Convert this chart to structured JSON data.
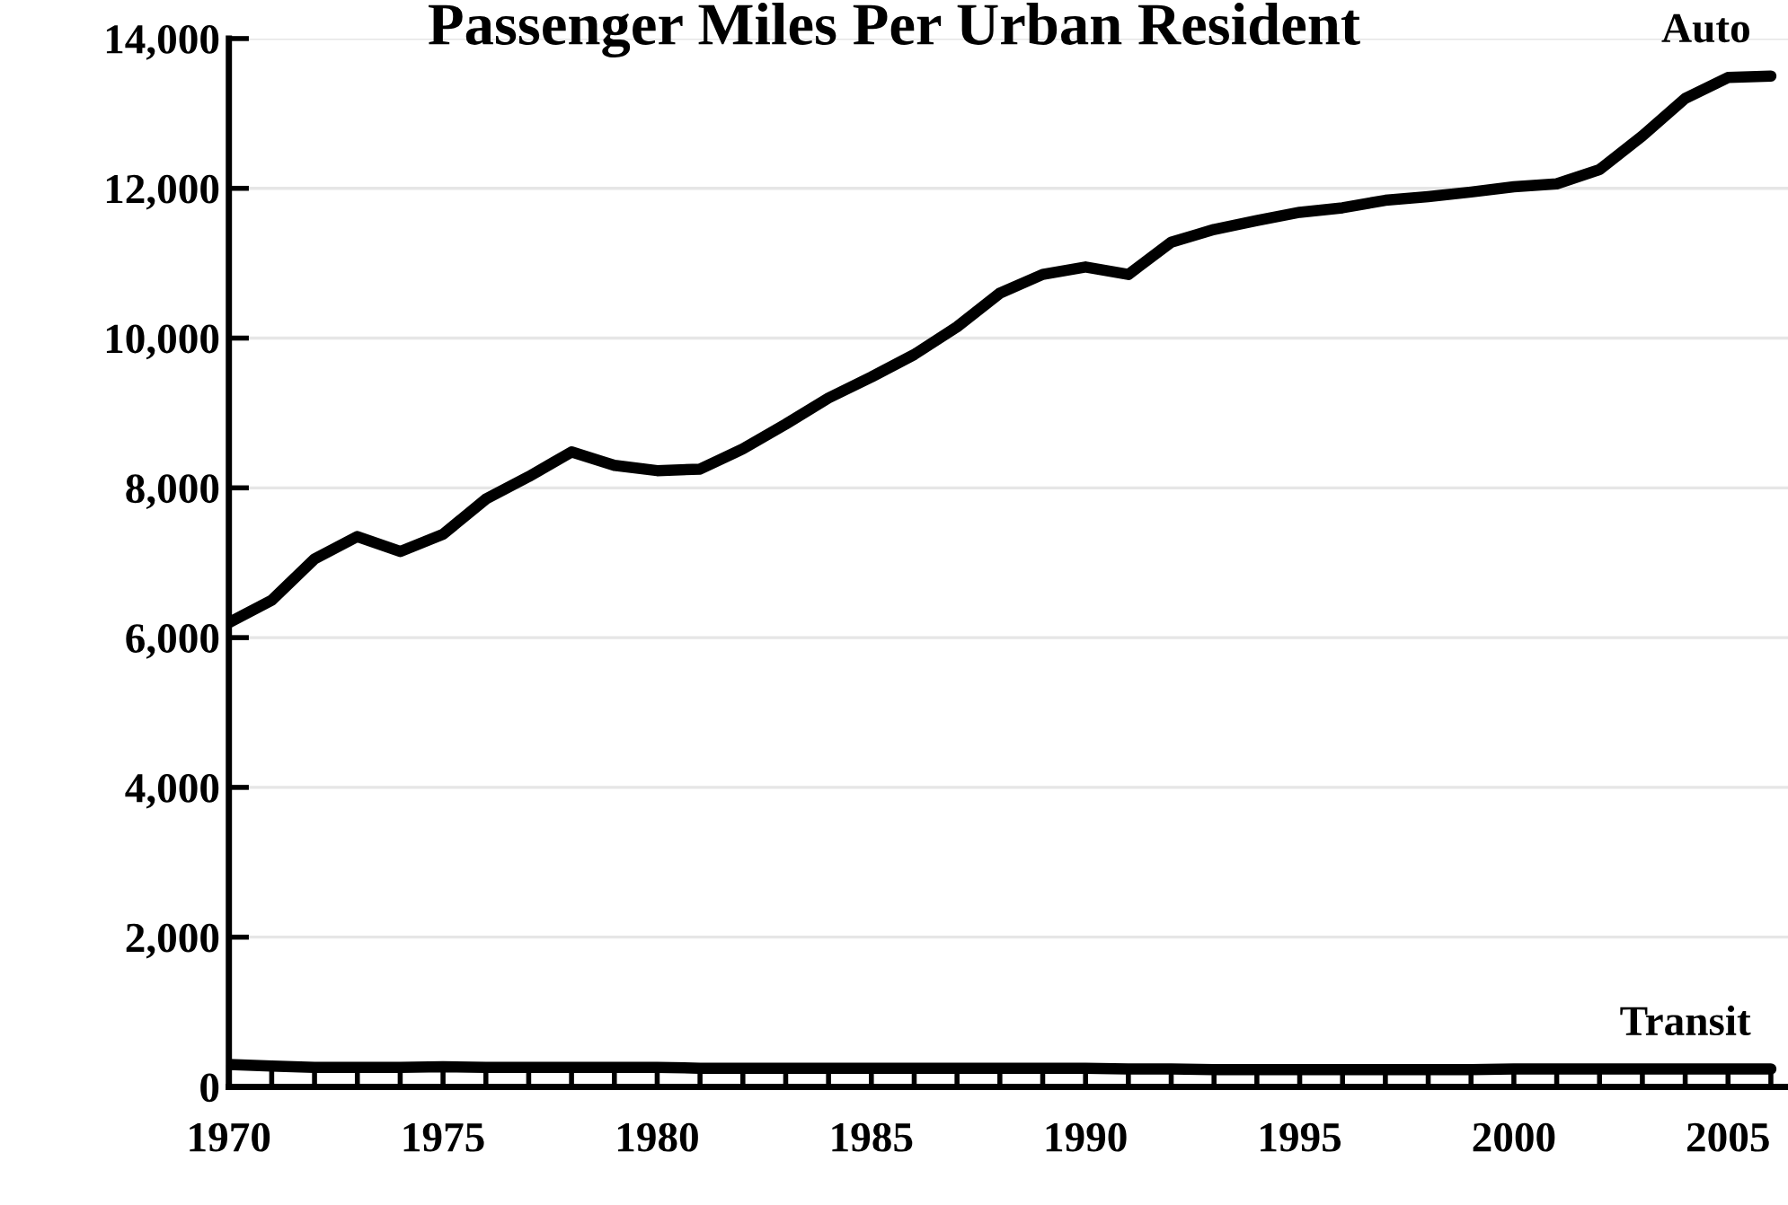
{
  "chart_data": {
    "type": "line",
    "title": "Passenger Miles Per Urban Resident",
    "x": [
      1970,
      1971,
      1972,
      1973,
      1974,
      1975,
      1976,
      1977,
      1978,
      1979,
      1980,
      1981,
      1982,
      1983,
      1984,
      1985,
      1986,
      1987,
      1988,
      1989,
      1990,
      1991,
      1992,
      1993,
      1994,
      1995,
      1996,
      1997,
      1998,
      1999,
      2000,
      2001,
      2002,
      2003,
      2004,
      2005,
      2006
    ],
    "series": [
      {
        "name": "Auto",
        "color": "#000000",
        "values": [
          6200,
          6500,
          7050,
          7350,
          7150,
          7380,
          7850,
          8150,
          8480,
          8300,
          8230,
          8250,
          8520,
          8850,
          9200,
          9480,
          9780,
          10150,
          10600,
          10850,
          10950,
          10850,
          11280,
          11450,
          11570,
          11680,
          11740,
          11840,
          11890,
          11950,
          12020,
          12060,
          12250,
          12700,
          13200,
          13480,
          13500
        ]
      },
      {
        "name": "Transit",
        "color": "#000000",
        "values": [
          300,
          280,
          260,
          260,
          260,
          270,
          260,
          260,
          260,
          260,
          260,
          250,
          250,
          250,
          250,
          250,
          250,
          250,
          250,
          250,
          250,
          240,
          240,
          230,
          230,
          230,
          230,
          230,
          230,
          230,
          240,
          240,
          240,
          240,
          240,
          240,
          240
        ]
      }
    ],
    "xlim": [
      1970,
      2006.4
    ],
    "xticks": [
      1970,
      {
        "value": 1971,
        "label": null
      },
      {
        "value": 1972,
        "label": null
      },
      {
        "value": 1973,
        "label": null
      },
      {
        "value": 1974,
        "label": null
      },
      1975,
      {
        "value": 1976,
        "label": null
      },
      {
        "value": 1977,
        "label": null
      },
      {
        "value": 1978,
        "label": null
      },
      {
        "value": 1979,
        "label": null
      },
      1980,
      {
        "value": 1981,
        "label": null
      },
      {
        "value": 1982,
        "label": null
      },
      {
        "value": 1983,
        "label": null
      },
      {
        "value": 1984,
        "label": null
      },
      1985,
      {
        "value": 1986,
        "label": null
      },
      {
        "value": 1987,
        "label": null
      },
      {
        "value": 1988,
        "label": null
      },
      {
        "value": 1989,
        "label": null
      },
      1990,
      {
        "value": 1991,
        "label": null
      },
      {
        "value": 1992,
        "label": null
      },
      {
        "value": 1993,
        "label": null
      },
      {
        "value": 1994,
        "label": null
      },
      1995,
      {
        "value": 1996,
        "label": null
      },
      {
        "value": 1997,
        "label": null
      },
      {
        "value": 1998,
        "label": null
      },
      {
        "value": 1999,
        "label": null
      },
      2000,
      {
        "value": 2001,
        "label": null
      },
      {
        "value": 2002,
        "label": null
      },
      {
        "value": 2003,
        "label": null
      },
      {
        "value": 2004,
        "label": null
      },
      2005,
      {
        "value": 2006,
        "label": null
      }
    ],
    "ylim": [
      0,
      14000
    ],
    "yticks": [
      {
        "value": 0,
        "label": "0"
      },
      {
        "value": 2000,
        "label": "2,000"
      },
      {
        "value": 4000,
        "label": "4,000"
      },
      {
        "value": 6000,
        "label": "6,000"
      },
      {
        "value": 8000,
        "label": "8,000"
      },
      {
        "value": 10000,
        "label": "10,000"
      },
      {
        "value": 12000,
        "label": "12,000"
      },
      {
        "value": 14000,
        "label": "14,000"
      }
    ],
    "grid": "y",
    "legend": false,
    "marker": "none",
    "line_style": "solid"
  }
}
